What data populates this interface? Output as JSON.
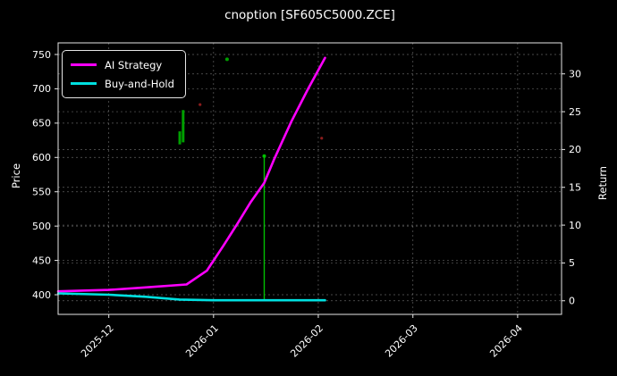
{
  "chart_data": {
    "type": "line",
    "title": "cnoption [SF605C5000.ZCE]",
    "ylabel_left": "Price",
    "ylabel_right": "Return",
    "background": "#000000",
    "foreground": "#ffffff",
    "grid": {
      "on": true,
      "color": "#ffffff",
      "opacity": 0.38
    },
    "x_axis": {
      "lim": [
        "2025-11-16",
        "2026-04-14"
      ],
      "ticks": [
        {
          "date": "2025-12-01",
          "label": "2025-12"
        },
        {
          "date": "2026-01-01",
          "label": "2026-01"
        },
        {
          "date": "2026-02-01",
          "label": "2026-02"
        },
        {
          "date": "2026-03-01",
          "label": "2026-03"
        },
        {
          "date": "2026-04-01",
          "label": "2026-04"
        }
      ]
    },
    "price_axis": {
      "lim": [
        371.4,
        766.9
      ],
      "ticks": [
        400,
        450,
        500,
        550,
        600,
        650,
        700,
        750
      ]
    },
    "return_axis": {
      "lim": [
        -1.8,
        34.1
      ],
      "ticks": [
        0,
        5,
        10,
        15,
        20,
        25,
        30
      ]
    },
    "series": [
      {
        "name": "AI Strategy",
        "color": "#ff00ff",
        "width": 2.6,
        "axis": "price",
        "points": [
          [
            "2025-11-16",
            405
          ],
          [
            "2025-12-01",
            407
          ],
          [
            "2025-12-10",
            410
          ],
          [
            "2025-12-24",
            415
          ],
          [
            "2025-12-30",
            435
          ],
          [
            "2026-01-04",
            472
          ],
          [
            "2026-01-08",
            503
          ],
          [
            "2026-01-12",
            535
          ],
          [
            "2026-01-16",
            563
          ],
          [
            "2026-01-19",
            598
          ],
          [
            "2026-01-24",
            652
          ],
          [
            "2026-01-29",
            700
          ],
          [
            "2026-02-03",
            745
          ]
        ]
      },
      {
        "name": "Buy-and-Hold",
        "color": "#00e0e0",
        "width": 2.6,
        "axis": "price",
        "points": [
          [
            "2025-11-16",
            402
          ],
          [
            "2025-12-01",
            400
          ],
          [
            "2025-12-12",
            397
          ],
          [
            "2025-12-22",
            393
          ],
          [
            "2026-01-01",
            392
          ],
          [
            "2026-01-15",
            392
          ],
          [
            "2026-02-03",
            392
          ]
        ]
      }
    ],
    "annotations": {
      "green_segments": [
        {
          "date": "2025-12-22",
          "from": 619,
          "to": 638,
          "width": 3,
          "color": "#00a000"
        },
        {
          "date": "2025-12-23",
          "from": 622,
          "to": 669,
          "width": 3,
          "color": "#00a000"
        },
        {
          "date": "2026-01-16",
          "from": 392,
          "to": 602,
          "width": 1.4,
          "color": "#00c000"
        }
      ],
      "green_dots": [
        {
          "date": "2026-01-05",
          "price": 743,
          "color": "#00a000"
        },
        {
          "date": "2026-01-16",
          "price": 602,
          "color": "#00c000"
        }
      ],
      "red_dots": [
        {
          "date": "2025-12-28",
          "price": 677,
          "color": "#8a1c1c"
        },
        {
          "date": "2026-02-02",
          "price": 628,
          "color": "#8a1c1c"
        }
      ]
    },
    "legend": {
      "position": "upper-left",
      "items": [
        {
          "label": "AI Strategy",
          "color": "#ff00ff"
        },
        {
          "label": "Buy-and-Hold",
          "color": "#00e0e0"
        }
      ]
    }
  }
}
